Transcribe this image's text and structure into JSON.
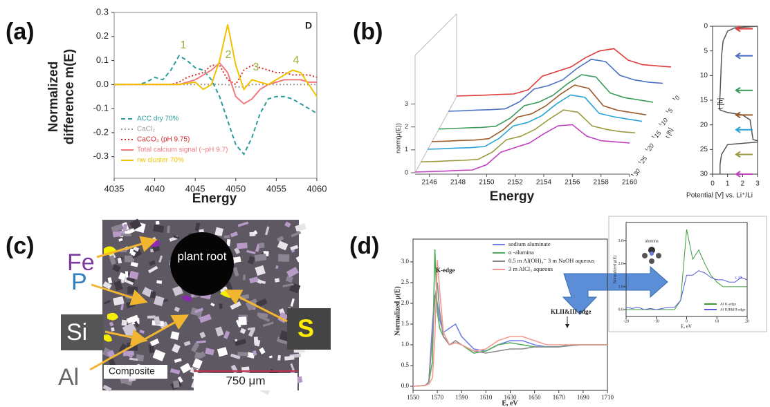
{
  "chart_data": [
    {
      "type": "line",
      "panel_label": "(a)",
      "corner_label": "D",
      "ylabel": [
        "Normalized",
        "difference m(E)"
      ],
      "xlabel": "Energy",
      "x": [
        4035,
        4036,
        4037,
        4038,
        4039,
        4040,
        4041,
        4042,
        4043,
        4044,
        4045,
        4046,
        4047,
        4048,
        4049,
        4050,
        4051,
        4052,
        4053,
        4054,
        4055,
        4056,
        4057,
        4058,
        4059,
        4060
      ],
      "xlim": [
        4035,
        4060
      ],
      "xticks": [
        4035,
        4040,
        4045,
        4050,
        4055,
        4060
      ],
      "ylim": [
        -0.39,
        0.3
      ],
      "yticks": [
        -0.3,
        -0.2,
        -0.1,
        {
          "value": 0,
          "label": "0.0"
        },
        0.1,
        0.2,
        0.3
      ],
      "legend": "lower left",
      "annotations": [
        "1",
        "2",
        "3",
        "4"
      ],
      "series": [
        {
          "name": "ACC dry 70%",
          "color": "#2a9d9a",
          "style": "dashed",
          "values": [
            0,
            0,
            0,
            0,
            0.01,
            0.03,
            0.02,
            0.06,
            0.12,
            0.1,
            0.07,
            0.06,
            0.02,
            -0.05,
            -0.15,
            -0.25,
            -0.29,
            -0.22,
            -0.12,
            -0.06,
            -0.05,
            -0.05,
            -0.06,
            -0.08,
            -0.1,
            -0.12
          ]
        },
        {
          "name": "CaCl₂",
          "color": "#999999",
          "style": "dotted",
          "values": [
            0,
            0,
            0,
            0,
            0,
            0,
            0,
            0,
            0,
            0,
            0,
            0,
            0,
            0,
            0,
            -0.01,
            -0.01,
            0,
            0,
            0,
            0,
            0,
            0,
            0,
            0,
            0
          ]
        },
        {
          "name": "CaCO₃ (pH 9.75)",
          "color": "#d62a2a",
          "style": "dotted",
          "values": [
            0,
            0,
            0,
            0,
            0,
            0,
            0,
            0,
            0.01,
            0.03,
            0.04,
            0.05,
            0.08,
            0.08,
            0.02,
            0,
            0.06,
            0.08,
            0.07,
            0.06,
            0.05,
            0.05,
            0.04,
            0.04,
            0.04,
            0.03
          ]
        },
        {
          "name": "Total calcium signal (~pH 9.7)",
          "color": "#f07a80",
          "style": "solid",
          "values": [
            0,
            0,
            0,
            0,
            0,
            0,
            0,
            0,
            0,
            0.01,
            0.02,
            0.04,
            0.06,
            0.09,
            0.05,
            -0.05,
            -0.08,
            -0.06,
            -0.02,
            0,
            0.01,
            0.02,
            0.02,
            0.02,
            0.01,
            0.01
          ]
        },
        {
          "name": "nw cluster 70%",
          "color": "#f2c200",
          "style": "solid",
          "values": [
            0,
            0,
            0,
            0,
            0,
            0,
            0,
            0,
            0,
            0.005,
            0.01,
            -0.02,
            0,
            0.1,
            0.25,
            0.08,
            -0.02,
            0.02,
            0.01,
            0,
            0.02,
            0.04,
            0.06,
            0.05,
            0,
            -0.05
          ]
        }
      ]
    },
    {
      "type": "waterfall",
      "panel_label": "(b)",
      "xlabel": "Energy",
      "ylabel": "norm(μ(E))",
      "zlabel": "t [h]",
      "x": [
        2145,
        2146,
        2147,
        2148,
        2149,
        2150,
        2151,
        2152,
        2153,
        2154,
        2155,
        2156,
        2157,
        2158,
        2159,
        2160
      ],
      "xlim": [
        2145,
        2160
      ],
      "xticks": [
        2146,
        2148,
        2150,
        2152,
        2154,
        2156,
        2158,
        2160
      ],
      "ylim": [
        0,
        3.5
      ],
      "yticks": [
        0,
        1,
        2,
        3
      ],
      "zlim": [
        0,
        30
      ],
      "zticks": [
        0,
        5,
        10,
        15,
        20,
        25,
        30
      ],
      "series": [
        {
          "t": 0,
          "color": "#e03a3a",
          "values": [
            0.03,
            0.05,
            0.07,
            0.1,
            0.12,
            0.3,
            0.9,
            1.1,
            1.3,
            1.7,
            2.0,
            2.1,
            1.6,
            1.4,
            1.35,
            1.3
          ]
        },
        {
          "t": 6,
          "color": "#4a6fc4",
          "values": [
            0.03,
            0.05,
            0.08,
            0.1,
            0.14,
            0.45,
            1.0,
            1.15,
            1.4,
            1.9,
            2.3,
            2.2,
            1.6,
            1.4,
            1.3,
            1.25
          ]
        },
        {
          "t": 13,
          "color": "#3a9a5a",
          "values": [
            0.03,
            0.05,
            0.08,
            0.1,
            0.15,
            0.5,
            1.05,
            1.2,
            1.5,
            2.0,
            2.4,
            2.3,
            1.6,
            1.4,
            1.3,
            1.2
          ]
        },
        {
          "t": 18,
          "color": "#9b5a2a",
          "values": [
            0.03,
            0.05,
            0.08,
            0.1,
            0.16,
            0.55,
            1.1,
            1.25,
            1.6,
            2.1,
            2.5,
            2.35,
            1.6,
            1.4,
            1.3,
            1.2
          ]
        },
        {
          "t": 21,
          "color": "#29a3d6",
          "values": [
            0.03,
            0.05,
            0.08,
            0.1,
            0.15,
            0.5,
            1.05,
            1.2,
            1.5,
            2.0,
            2.4,
            2.3,
            1.6,
            1.45,
            1.35,
            1.25
          ]
        },
        {
          "t": 26,
          "color": "#9a9a40",
          "values": [
            0.03,
            0.05,
            0.08,
            0.1,
            0.14,
            0.45,
            1.0,
            1.15,
            1.45,
            1.9,
            2.3,
            2.2,
            1.6,
            1.45,
            1.35,
            1.3
          ]
        },
        {
          "t": 30,
          "color": "#c040c0",
          "values": [
            0.03,
            0.05,
            0.07,
            0.1,
            0.12,
            0.35,
            0.9,
            1.1,
            1.3,
            1.7,
            2.05,
            2.1,
            1.6,
            1.4,
            1.35,
            1.3
          ]
        }
      ]
    },
    {
      "type": "profile",
      "xlabel": "Potential [V] vs. Li⁺/Li",
      "ylabel": "t [h]",
      "color": "#555555",
      "x": [
        3.0,
        1.5,
        1.0,
        0.7,
        0.6,
        0.55,
        0.5,
        0.45,
        0.5,
        1.0,
        2.0,
        2.5,
        2.6,
        2.7,
        3.0,
        3.0,
        1.0,
        0.6,
        0.5,
        0.5
      ],
      "values": [
        0,
        0.3,
        1,
        3,
        6,
        10,
        14,
        16,
        17,
        17.5,
        18,
        19,
        21,
        23,
        23.2,
        23.5,
        24,
        26,
        28,
        30
      ],
      "xlim": [
        0,
        3
      ],
      "xticks": [
        0,
        1,
        2,
        3
      ],
      "ylim": [
        0,
        30
      ],
      "y_inverted": true,
      "yticks": [
        0,
        5,
        10,
        15,
        20,
        25,
        30
      ],
      "arrows": [
        {
          "value": 0.5,
          "color": "#e03a3a"
        },
        {
          "value": 6,
          "color": "#4a6fc4"
        },
        {
          "value": 13,
          "color": "#3a9a5a"
        },
        {
          "value": 18,
          "color": "#9b5a2a"
        },
        {
          "value": 21,
          "color": "#29a3d6"
        },
        {
          "value": 26,
          "color": "#9a9a40"
        },
        {
          "value": 30,
          "color": "#c040c0"
        }
      ]
    },
    {
      "type": "line",
      "panel_label": "(d)",
      "xlabel": "E, eV",
      "ylabel": "Normalized μ(E)",
      "legend": "upper right",
      "annotations": [
        "K-edge",
        "KLII&III-edge"
      ],
      "x": [
        1550,
        1560,
        1563,
        1566,
        1568,
        1570,
        1572,
        1575,
        1580,
        1585,
        1590,
        1600,
        1610,
        1620,
        1630,
        1640,
        1650,
        1660,
        1670,
        1680,
        1690,
        1700,
        1710
      ],
      "xlim": [
        1550,
        1710
      ],
      "xticks": [
        1550,
        1570,
        1590,
        1610,
        1630,
        1650,
        1670,
        1690,
        1710
      ],
      "ylim": [
        -0.1,
        3.55
      ],
      "yticks": [
        {
          "value": 0,
          "label": "0.0"
        },
        0.5,
        {
          "value": 1,
          "label": "1.0"
        },
        1.5,
        {
          "value": 2,
          "label": "2.0"
        },
        2.5,
        {
          "value": 3,
          "label": "3.0"
        }
      ],
      "series": [
        {
          "name": "sodium aluminate",
          "color": "#6f7fe8",
          "style": "solid",
          "values": [
            0,
            0.02,
            0.1,
            1.5,
            2.2,
            2.0,
            1.6,
            1.3,
            1.4,
            1.5,
            1.2,
            0.9,
            0.85,
            1.0,
            1.1,
            1.1,
            1.0,
            0.95,
            0.95,
            1.0,
            1.0,
            1.0,
            1.0
          ]
        },
        {
          "name": "α -alumina",
          "color": "#4fae5a",
          "style": "solid",
          "values": [
            0,
            0.02,
            0.1,
            0.6,
            3.3,
            1.8,
            1.4,
            1.2,
            1.0,
            1.05,
            1.0,
            0.8,
            0.85,
            1.0,
            1.05,
            1.0,
            0.95,
            0.95,
            0.95,
            1.0,
            1.0,
            1.0,
            1.0
          ]
        },
        {
          "name": "0.5 m Al(OH)₄⁻ 3 m NaOH aqueous",
          "color": "#8a8a8a",
          "style": "solid",
          "values": [
            0,
            0.02,
            0.1,
            1.2,
            2.1,
            2.5,
            1.8,
            1.2,
            1.0,
            1.1,
            1.0,
            0.85,
            0.8,
            0.85,
            0.9,
            0.9,
            0.95,
            0.95,
            0.95,
            0.98,
            1.0,
            1.0,
            1.0
          ]
        },
        {
          "name": "3 m AlCl₃ aqueous",
          "color": "#f29a92",
          "style": "solid",
          "values": [
            0,
            0.02,
            0.05,
            0.2,
            1.2,
            3.05,
            2.3,
            1.3,
            1.0,
            1.05,
            1.0,
            0.85,
            0.9,
            1.1,
            1.2,
            1.2,
            1.1,
            1.0,
            1.0,
            1.0,
            1.0,
            1.0,
            1.0
          ]
        }
      ]
    },
    {
      "type": "line",
      "xlabel": "E, eV",
      "ylabel": "Normalized μ(E)",
      "legend": "lower right",
      "annotations": [
        "alumina",
        "x 10"
      ],
      "x": [
        -20,
        -18,
        -16,
        -14,
        -12,
        -10,
        -8,
        -6,
        -4,
        -2,
        0,
        2,
        4,
        6,
        8,
        10,
        12,
        14,
        16,
        18,
        20
      ],
      "xlim": [
        -20,
        20
      ],
      "xticks": [
        -20,
        -10,
        0,
        10,
        20
      ],
      "ylim": [
        -0.3,
        3.8
      ],
      "yticks": [
        {
          "value": 0,
          "label": "0.0"
        },
        {
          "value": 1,
          "label": "1.0"
        },
        {
          "value": 2,
          "label": "2.0"
        },
        {
          "value": 3,
          "label": "3.0"
        }
      ],
      "series": [
        {
          "name": "Al K-edge",
          "color": "#3a9a3a",
          "style": "solid",
          "values": [
            0,
            0,
            0,
            0,
            0,
            0,
            0,
            0,
            0,
            0.4,
            3.5,
            2.2,
            2.6,
            2.0,
            1.5,
            1.2,
            1.0,
            1.0,
            1.0,
            1.0,
            1.0
          ]
        },
        {
          "name": "Al KII&III-edge",
          "color": "#5a5ae0",
          "style": "solid",
          "values": [
            0.1,
            0.05,
            0.1,
            0,
            0.05,
            0,
            0.05,
            0.1,
            0.1,
            0.4,
            1.5,
            1.5,
            1.7,
            1.6,
            1.4,
            1.3,
            1.3,
            1.2,
            1.2,
            1.4,
            1.3
          ]
        }
      ]
    }
  ],
  "micrograph": {
    "panel_label": "(c)",
    "root": "plant root",
    "fe": "Fe",
    "p": "P",
    "si": "Si",
    "al": "Al",
    "s": "S",
    "mode": "Composite",
    "scale": "750 μm"
  }
}
